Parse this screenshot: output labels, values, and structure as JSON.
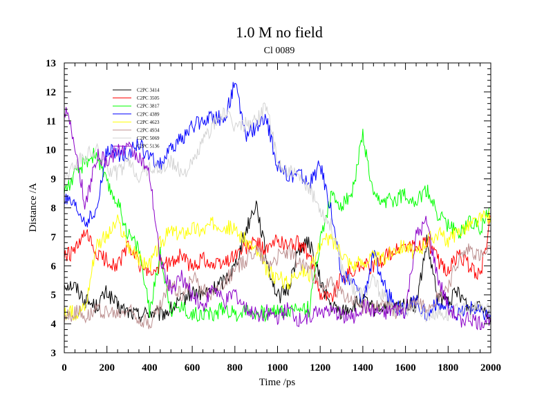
{
  "chart_data": {
    "type": "line",
    "title": "1.0 M no field",
    "subtitle": "Cl 0089",
    "xlabel": "Time /ps",
    "ylabel": "Distance /A",
    "xlim": [
      0,
      2000
    ],
    "ylim": [
      3,
      13
    ],
    "x_ticks": [
      0,
      200,
      400,
      600,
      800,
      1000,
      1200,
      1400,
      1600,
      1800,
      2000
    ],
    "y_ticks": [
      3,
      4,
      5,
      6,
      7,
      8,
      9,
      10,
      11,
      12,
      13
    ],
    "legend_position": "upper-left",
    "x": [
      0,
      50,
      100,
      150,
      200,
      250,
      300,
      350,
      400,
      450,
      500,
      550,
      600,
      650,
      700,
      750,
      800,
      850,
      900,
      950,
      1000,
      1050,
      1100,
      1150,
      1200,
      1250,
      1300,
      1350,
      1400,
      1450,
      1500,
      1550,
      1600,
      1650,
      1700,
      1750,
      1800,
      1850,
      1900,
      1950,
      2000
    ],
    "series": [
      {
        "name": "C2PC 3414",
        "color": "#000000",
        "values": [
          5.4,
          5.3,
          4.8,
          4.6,
          5.1,
          4.6,
          4.4,
          4.3,
          4.4,
          4.3,
          4.5,
          4.8,
          5.1,
          5.0,
          5.2,
          5.5,
          6.0,
          7.2,
          8.2,
          6.2,
          4.9,
          5.2,
          6.6,
          6.8,
          5.5,
          4.6,
          4.4,
          4.6,
          4.8,
          4.5,
          4.6,
          4.5,
          4.7,
          4.6,
          6.8,
          4.9,
          4.8,
          5.1,
          4.5,
          4.8,
          4.2
        ]
      },
      {
        "name": "C2PC 3505",
        "color": "#ff0000",
        "values": [
          6.3,
          6.5,
          7.1,
          6.4,
          6.2,
          6.0,
          6.7,
          6.1,
          5.7,
          6.0,
          6.1,
          6.4,
          5.9,
          6.3,
          6.0,
          6.1,
          6.4,
          6.6,
          6.8,
          6.5,
          6.9,
          6.7,
          6.8,
          6.3,
          5.1,
          4.9,
          5.6,
          5.8,
          6.1,
          5.9,
          6.3,
          6.5,
          6.7,
          6.6,
          6.9,
          6.2,
          5.8,
          6.4,
          6.0,
          5.6,
          7.7
        ]
      },
      {
        "name": "C2PC 3817",
        "color": "#00ff00",
        "values": [
          8.6,
          9.1,
          9.6,
          9.9,
          8.8,
          8.2,
          7.1,
          6.6,
          4.4,
          6.4,
          4.5,
          4.6,
          4.3,
          4.4,
          4.3,
          4.6,
          4.3,
          4.5,
          4.4,
          4.3,
          4.5,
          4.4,
          4.6,
          4.5,
          6.9,
          8.4,
          8.1,
          8.5,
          10.5,
          8.3,
          8.2,
          8.3,
          8.5,
          8.2,
          8.6,
          7.8,
          7.4,
          7.1,
          7.6,
          7.3,
          8.0
        ]
      },
      {
        "name": "C2PC 4389",
        "color": "#0000ff",
        "values": [
          8.3,
          8.0,
          7.5,
          7.8,
          10.0,
          9.8,
          9.9,
          10.2,
          9.7,
          9.5,
          10.0,
          10.4,
          10.8,
          11.0,
          11.2,
          11.0,
          12.3,
          10.5,
          10.8,
          11.0,
          9.4,
          9.1,
          9.2,
          8.8,
          9.5,
          8.0,
          5.6,
          5.5,
          4.8,
          6.4,
          5.3,
          4.6,
          4.4,
          4.8,
          4.3,
          4.7,
          4.5,
          4.3,
          4.6,
          4.4,
          4.3
        ]
      },
      {
        "name": "C2PC 4623",
        "color": "#ffff00",
        "values": [
          4.3,
          4.4,
          4.6,
          6.8,
          7.0,
          7.5,
          6.7,
          6.2,
          6.0,
          6.8,
          7.2,
          7.1,
          7.3,
          7.2,
          7.5,
          7.4,
          7.2,
          6.9,
          6.5,
          5.8,
          5.6,
          5.4,
          5.9,
          5.7,
          6.8,
          6.9,
          6.5,
          6.0,
          6.1,
          6.3,
          6.2,
          6.6,
          6.7,
          6.4,
          6.9,
          7.1,
          6.9,
          7.2,
          7.4,
          7.6,
          7.7
        ]
      },
      {
        "name": "C2PC 4934",
        "color": "#bc8f8f",
        "values": [
          4.2,
          4.4,
          4.3,
          4.5,
          4.4,
          4.3,
          4.5,
          4.2,
          4.0,
          4.6,
          5.4,
          5.0,
          5.6,
          5.2,
          5.0,
          5.5,
          5.8,
          6.2,
          6.6,
          6.1,
          6.3,
          6.5,
          6.1,
          5.9,
          5.2,
          5.4,
          5.0,
          4.8,
          4.6,
          4.5,
          4.7,
          4.4,
          4.5,
          4.8,
          4.6,
          4.9,
          5.3,
          6.2,
          6.6,
          6.3,
          6.5
        ]
      },
      {
        "name": "C2PC 5069",
        "color": "#d3d3d3",
        "values": [
          9.0,
          9.5,
          9.8,
          10.0,
          9.4,
          9.2,
          9.6,
          9.1,
          9.4,
          9.3,
          9.6,
          9.2,
          9.5,
          10.3,
          10.9,
          11.3,
          10.8,
          10.9,
          11.0,
          11.6,
          9.5,
          9.3,
          9.0,
          8.6,
          8.0,
          7.4,
          6.0,
          5.3,
          5.0,
          5.5,
          4.9,
          4.4,
          4.5,
          4.6,
          4.3,
          4.4,
          4.3,
          4.5,
          4.4,
          4.6,
          4.5
        ]
      },
      {
        "name": "C2PC 5136",
        "color": "#8b00c8",
        "values": [
          11.5,
          10.2,
          8.0,
          9.8,
          9.6,
          10.0,
          10.1,
          9.8,
          9.1,
          6.2,
          5.2,
          5.6,
          5.0,
          4.6,
          5.3,
          4.7,
          5.1,
          4.5,
          4.3,
          4.4,
          4.2,
          4.5,
          4.1,
          4.3,
          4.5,
          4.4,
          4.3,
          4.2,
          4.6,
          4.4,
          4.3,
          4.5,
          4.4,
          7.0,
          7.5,
          5.6,
          4.6,
          4.1,
          4.2,
          4.0,
          4.2
        ]
      }
    ]
  }
}
